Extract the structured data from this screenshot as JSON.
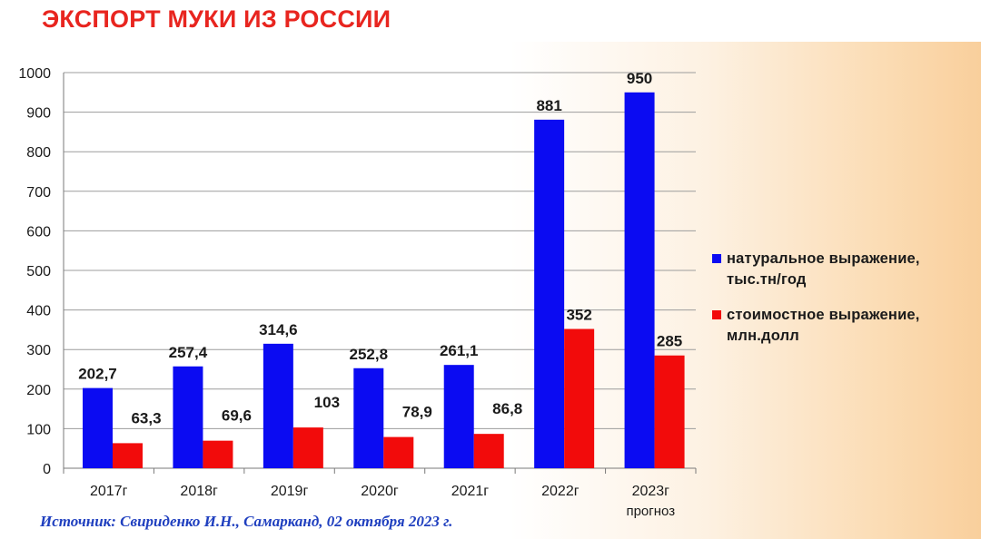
{
  "chart_data": {
    "type": "bar",
    "title": "ЭКСПОРТ МУКИ ИЗ РОССИИ",
    "categories": [
      "2017г",
      "2018г",
      "2019г",
      "2020г",
      "2021г",
      "2022г",
      "2023г"
    ],
    "category_sublabels": [
      "",
      "",
      "",
      "",
      "",
      "",
      "прогноз"
    ],
    "series": [
      {
        "name": "натуральное выражение,\nтыс.тн/год",
        "color": "#0b0bf2",
        "values": [
          202.7,
          257.4,
          314.6,
          252.8,
          261.1,
          881,
          950
        ],
        "labels": [
          "202,7",
          "257,4",
          "314,6",
          "252,8",
          "261,1",
          "881",
          "950"
        ]
      },
      {
        "name": "стоимостное выражение,\nмлн.долл",
        "color": "#f20b0b",
        "values": [
          63.3,
          69.6,
          103,
          78.9,
          86.8,
          352,
          285
        ],
        "labels": [
          "63,3",
          "69,6",
          "103",
          "78,9",
          "86,8",
          "352",
          "285"
        ]
      }
    ],
    "yticks": [
      "0",
      "100",
      "200",
      "300",
      "400",
      "500",
      "600",
      "700",
      "800",
      "900",
      "1000"
    ],
    "ylim": [
      0,
      1000
    ],
    "xlabel": "",
    "ylabel": "",
    "grid": true,
    "legend_position": "right"
  },
  "source": "Источник: Свириденко И.Н., Самарканд, 02 октября 2023 г."
}
